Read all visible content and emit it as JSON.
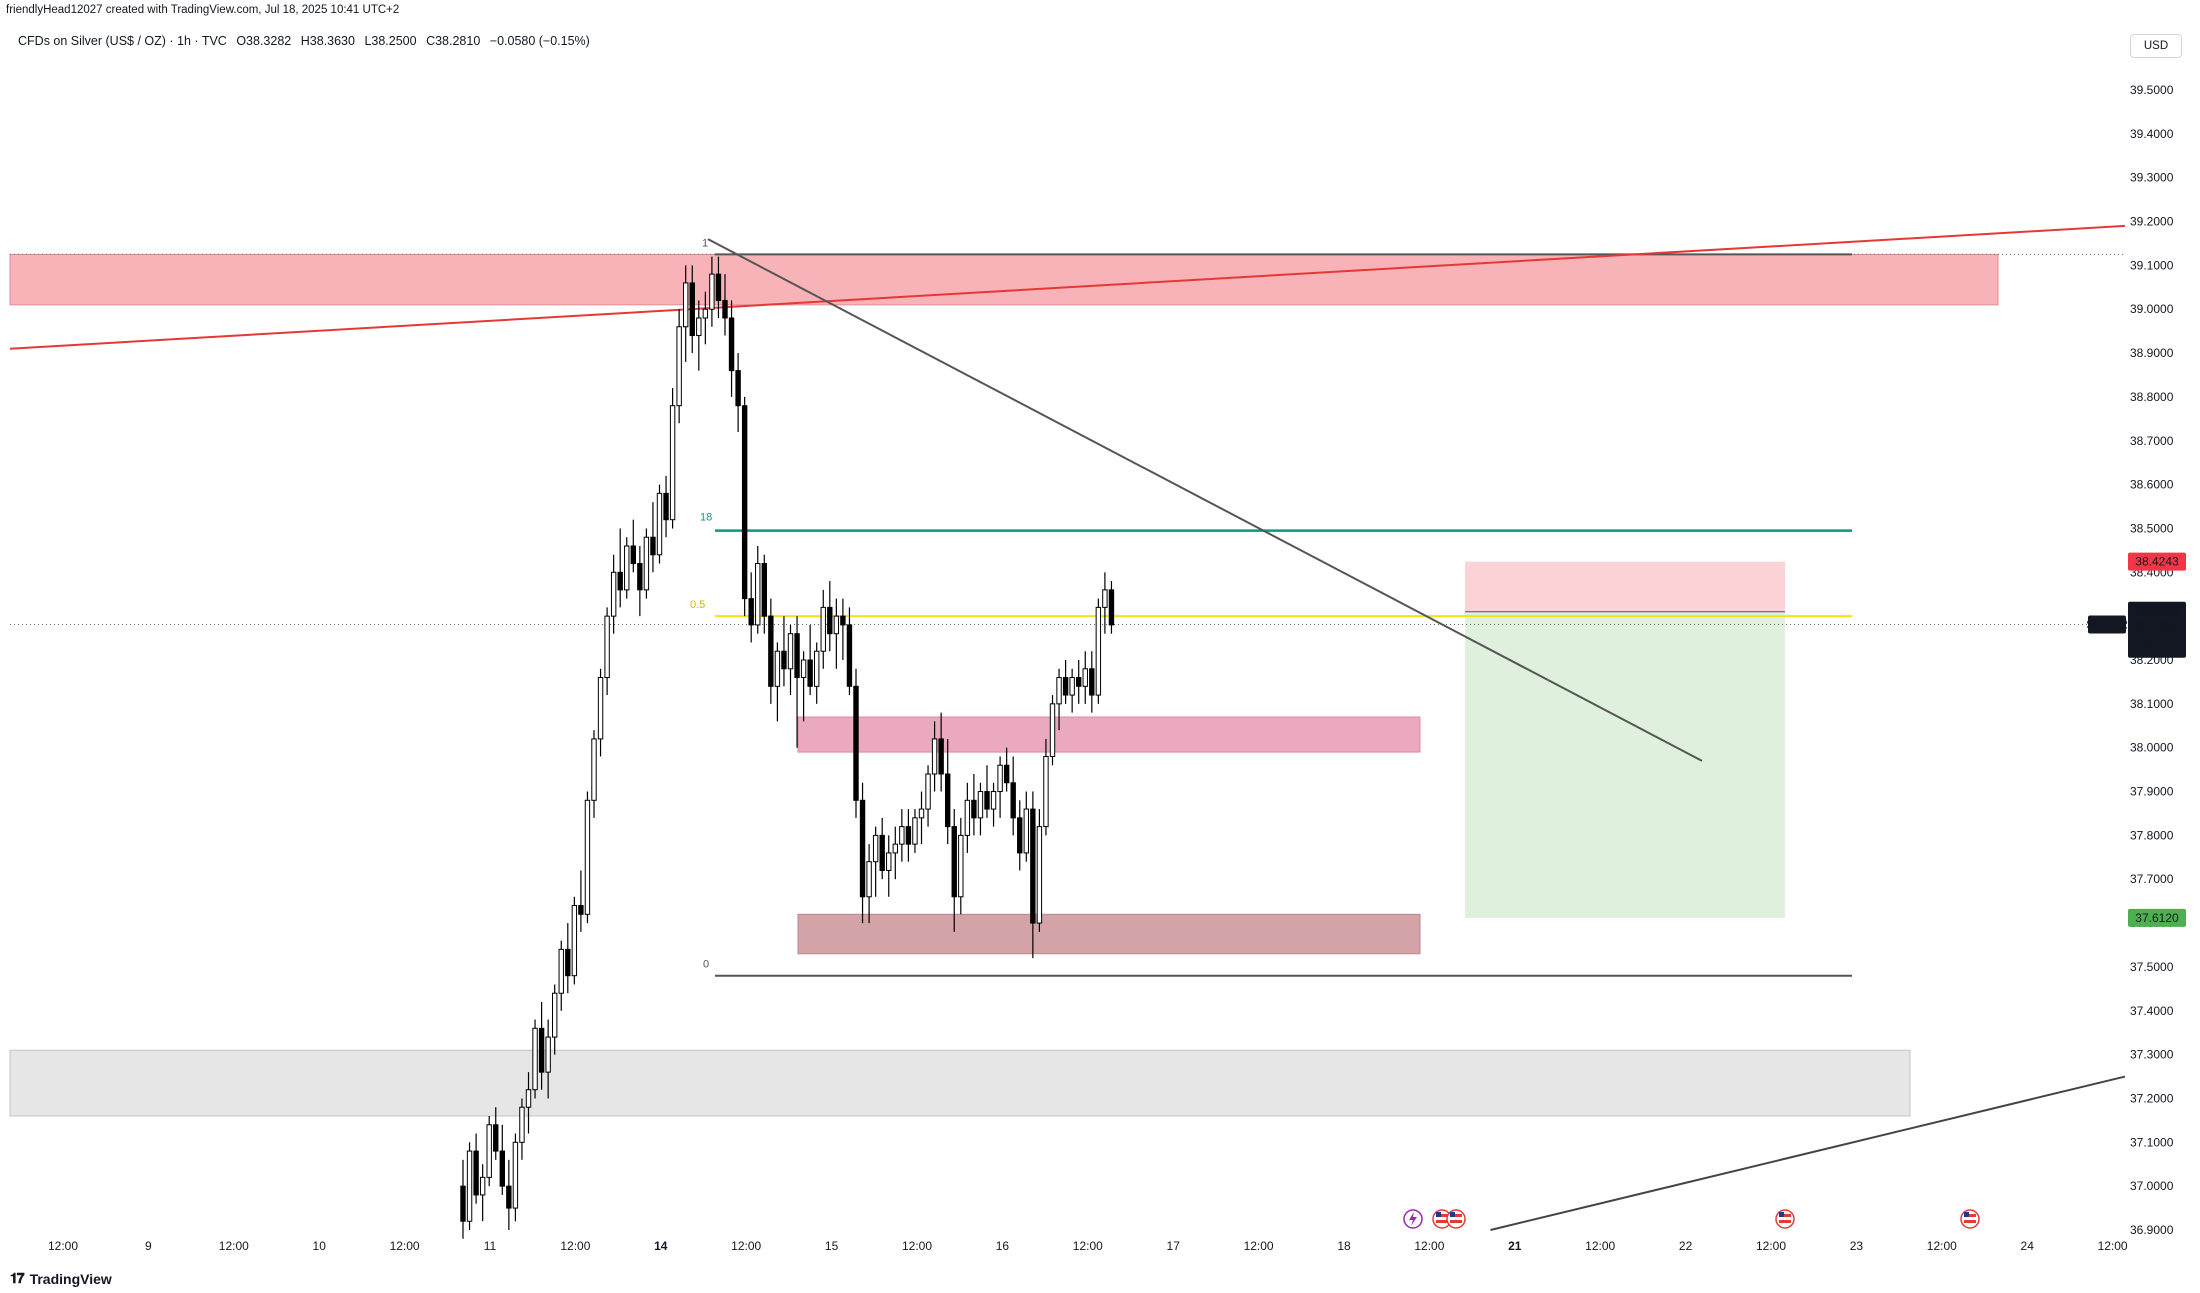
{
  "header": {
    "created_by": "friendlyHead12027 created with TradingView.com, Jul 18, 2025 10:41 UTC+2"
  },
  "symbol": {
    "name": "CFDs on Silver (US$ / OZ) · 1h · TVC",
    "open": "O38.3282",
    "high": "H38.3630",
    "low": "L38.2500",
    "close": "C38.2810",
    "change": "−0.0580 (−0.15%)"
  },
  "currency_button": "USD",
  "branding": "TradingView",
  "colors": {
    "up_candle": "#ffffff",
    "down_candle": "#000000",
    "resistance_zone": "#f7b3b8",
    "demand_zone_upper": "#eba9c0",
    "demand_zone_lower": "#d3a3a8",
    "support_gray_zone": "#e6e6e6",
    "red_trendline": "#e53935",
    "fib_green": "#089981",
    "fib_yellow": "#f5e317",
    "stop_zone": "#fbd2d6",
    "target_zone": "#dff0dc"
  },
  "chart_data": {
    "type": "candlestick",
    "timeframe": "1h",
    "y_axis": {
      "min": 36.9,
      "max": 39.6,
      "ticks": [
        "39.5000",
        "39.4000",
        "39.3000",
        "39.2000",
        "39.1000",
        "39.0000",
        "38.9000",
        "38.8000",
        "38.7000",
        "38.6000",
        "38.5000",
        "38.4000",
        "38.3000",
        "38.2000",
        "38.1000",
        "38.0000",
        "37.9000",
        "37.8000",
        "37.7000",
        "37.6000",
        "37.5000",
        "37.4000",
        "37.3000",
        "37.2000",
        "37.1000",
        "37.0000",
        "36.9000"
      ]
    },
    "x_axis": {
      "ticks": [
        "12:00",
        "9",
        "12:00",
        "10",
        "12:00",
        "11",
        "12:00",
        "14",
        "12:00",
        "15",
        "12:00",
        "16",
        "12:00",
        "17",
        "12:00",
        "18",
        "12:00",
        "21",
        "12:00",
        "22",
        "12:00",
        "23",
        "12:00",
        "24",
        "12:00"
      ],
      "bold_ticks": [
        "14",
        "21"
      ]
    },
    "price_labels": {
      "stop": "38.4243",
      "entry": "38.3099",
      "symbol": "SILVER",
      "last": "38.2810",
      "countdown": "18:27",
      "target": "37.6120"
    },
    "fib_labels": {
      "top": "1",
      "level_618": "0.618",
      "level_618_visible": "18",
      "level_05": "0.5",
      "bottom": "0"
    },
    "levels": {
      "fib_1": 39.125,
      "fib_618": 38.495,
      "fib_05": 38.3,
      "fib_0": 37.48,
      "current_price": 38.281
    },
    "zones": [
      {
        "name": "resistance",
        "from": 39.01,
        "to": 39.125
      },
      {
        "name": "demand-upper",
        "from": 37.99,
        "to": 38.07
      },
      {
        "name": "demand-lower",
        "from": 37.53,
        "to": 37.62
      },
      {
        "name": "support-gray",
        "from": 37.16,
        "to": 37.31
      }
    ],
    "position": {
      "entry": 38.31,
      "stop": 38.4243,
      "target": 37.612
    },
    "candles": [
      [
        37.0,
        37.06,
        36.88,
        36.92
      ],
      [
        36.92,
        37.1,
        36.9,
        37.08
      ],
      [
        37.08,
        37.12,
        36.96,
        36.98
      ],
      [
        36.98,
        37.05,
        36.92,
        37.02
      ],
      [
        37.02,
        37.16,
        37.0,
        37.14
      ],
      [
        37.14,
        37.18,
        37.06,
        37.08
      ],
      [
        37.08,
        37.14,
        36.98,
        37.0
      ],
      [
        37.0,
        37.06,
        36.9,
        36.95
      ],
      [
        36.95,
        37.12,
        36.92,
        37.1
      ],
      [
        37.1,
        37.2,
        37.06,
        37.18
      ],
      [
        37.18,
        37.26,
        37.12,
        37.22
      ],
      [
        37.22,
        37.38,
        37.2,
        37.36
      ],
      [
        37.36,
        37.42,
        37.22,
        37.26
      ],
      [
        37.26,
        37.38,
        37.2,
        37.34
      ],
      [
        37.34,
        37.46,
        37.3,
        37.44
      ],
      [
        37.44,
        37.56,
        37.4,
        37.54
      ],
      [
        37.54,
        37.6,
        37.44,
        37.48
      ],
      [
        37.48,
        37.66,
        37.46,
        37.64
      ],
      [
        37.64,
        37.72,
        37.58,
        37.62
      ],
      [
        37.62,
        37.9,
        37.6,
        37.88
      ],
      [
        37.88,
        38.04,
        37.84,
        38.02
      ],
      [
        38.02,
        38.18,
        37.98,
        38.16
      ],
      [
        38.16,
        38.32,
        38.12,
        38.3
      ],
      [
        38.3,
        38.44,
        38.26,
        38.4
      ],
      [
        38.4,
        38.5,
        38.32,
        38.36
      ],
      [
        38.36,
        38.48,
        38.34,
        38.46
      ],
      [
        38.46,
        38.52,
        38.4,
        38.42
      ],
      [
        38.42,
        38.46,
        38.3,
        38.36
      ],
      [
        38.36,
        38.5,
        38.34,
        38.48
      ],
      [
        38.48,
        38.56,
        38.4,
        38.44
      ],
      [
        38.44,
        38.6,
        38.42,
        38.58
      ],
      [
        38.58,
        38.62,
        38.48,
        38.52
      ],
      [
        38.52,
        38.82,
        38.5,
        38.78
      ],
      [
        38.78,
        39.0,
        38.74,
        38.96
      ],
      [
        38.96,
        39.1,
        38.88,
        39.06
      ],
      [
        39.06,
        39.1,
        38.9,
        38.94
      ],
      [
        38.94,
        39.02,
        38.86,
        38.98
      ],
      [
        38.98,
        39.04,
        38.92,
        39.0
      ],
      [
        39.0,
        39.12,
        38.96,
        39.08
      ],
      [
        39.08,
        39.12,
        38.98,
        39.02
      ],
      [
        39.02,
        39.08,
        38.94,
        38.98
      ],
      [
        38.98,
        39.02,
        38.8,
        38.86
      ],
      [
        38.86,
        38.9,
        38.72,
        38.78
      ],
      [
        38.78,
        38.8,
        38.3,
        38.34
      ],
      [
        38.34,
        38.4,
        38.24,
        38.28
      ],
      [
        38.28,
        38.46,
        38.26,
        38.42
      ],
      [
        38.42,
        38.44,
        38.26,
        38.3
      ],
      [
        38.3,
        38.34,
        38.1,
        38.14
      ],
      [
        38.14,
        38.24,
        38.06,
        38.22
      ],
      [
        38.22,
        38.3,
        38.14,
        38.18
      ],
      [
        38.18,
        38.28,
        38.12,
        38.26
      ],
      [
        38.26,
        38.3,
        38.0,
        38.16
      ],
      [
        38.16,
        38.22,
        38.06,
        38.2
      ],
      [
        38.2,
        38.28,
        38.12,
        38.14
      ],
      [
        38.14,
        38.24,
        38.1,
        38.22
      ],
      [
        38.22,
        38.36,
        38.18,
        38.32
      ],
      [
        38.32,
        38.38,
        38.22,
        38.26
      ],
      [
        38.26,
        38.34,
        38.18,
        38.3
      ],
      [
        38.3,
        38.34,
        38.2,
        38.28
      ],
      [
        38.28,
        38.32,
        38.12,
        38.14
      ],
      [
        38.14,
        38.18,
        37.84,
        37.88
      ],
      [
        37.88,
        37.92,
        37.6,
        37.66
      ],
      [
        37.66,
        37.78,
        37.6,
        37.74
      ],
      [
        37.74,
        37.82,
        37.66,
        37.8
      ],
      [
        37.8,
        37.84,
        37.7,
        37.72
      ],
      [
        37.72,
        37.8,
        37.66,
        37.76
      ],
      [
        37.76,
        37.82,
        37.7,
        37.78
      ],
      [
        37.78,
        37.86,
        37.74,
        37.82
      ],
      [
        37.82,
        37.86,
        37.74,
        37.78
      ],
      [
        37.78,
        37.86,
        37.76,
        37.84
      ],
      [
        37.84,
        37.9,
        37.78,
        37.86
      ],
      [
        37.86,
        37.96,
        37.82,
        37.94
      ],
      [
        37.94,
        38.06,
        37.9,
        38.02
      ],
      [
        38.02,
        38.08,
        37.9,
        37.94
      ],
      [
        37.94,
        38.02,
        37.78,
        37.82
      ],
      [
        37.82,
        37.86,
        37.58,
        37.66
      ],
      [
        37.66,
        37.84,
        37.62,
        37.8
      ],
      [
        37.8,
        37.92,
        37.76,
        37.88
      ],
      [
        37.88,
        37.94,
        37.8,
        37.84
      ],
      [
        37.84,
        37.92,
        37.8,
        37.9
      ],
      [
        37.9,
        37.96,
        37.84,
        37.86
      ],
      [
        37.86,
        37.92,
        37.82,
        37.9
      ],
      [
        37.9,
        37.98,
        37.84,
        37.96
      ],
      [
        37.96,
        38.0,
        37.9,
        37.92
      ],
      [
        37.92,
        37.98,
        37.8,
        37.84
      ],
      [
        37.84,
        37.88,
        37.72,
        37.76
      ],
      [
        37.76,
        37.9,
        37.74,
        37.86
      ],
      [
        37.86,
        37.9,
        37.52,
        37.6
      ],
      [
        37.6,
        37.86,
        37.58,
        37.82
      ],
      [
        37.82,
        38.02,
        37.8,
        37.98
      ],
      [
        37.98,
        38.12,
        37.96,
        38.1
      ],
      [
        38.1,
        38.18,
        38.04,
        38.16
      ],
      [
        38.16,
        38.2,
        38.1,
        38.12
      ],
      [
        38.12,
        38.18,
        38.08,
        38.16
      ],
      [
        38.16,
        38.2,
        38.1,
        38.14
      ],
      [
        38.14,
        38.22,
        38.1,
        38.18
      ],
      [
        38.18,
        38.22,
        38.08,
        38.12
      ],
      [
        38.12,
        38.34,
        38.1,
        38.32
      ],
      [
        38.32,
        38.4,
        38.26,
        38.36
      ],
      [
        38.36,
        38.38,
        38.26,
        38.28
      ]
    ],
    "trendlines": [
      {
        "name": "red-trendline",
        "from": {
          "x": 0,
          "y": 38.91
        },
        "to": {
          "x": 1,
          "y": 39.19
        }
      },
      {
        "name": "descending-trendline",
        "from": {
          "x": 0.33,
          "y": 39.16
        },
        "to": {
          "x": 0.8,
          "y": 37.97
        }
      },
      {
        "name": "ascending-line",
        "from": {
          "x": 0.7,
          "y": 36.9
        },
        "to": {
          "x": 1,
          "y": 37.25
        }
      }
    ]
  }
}
